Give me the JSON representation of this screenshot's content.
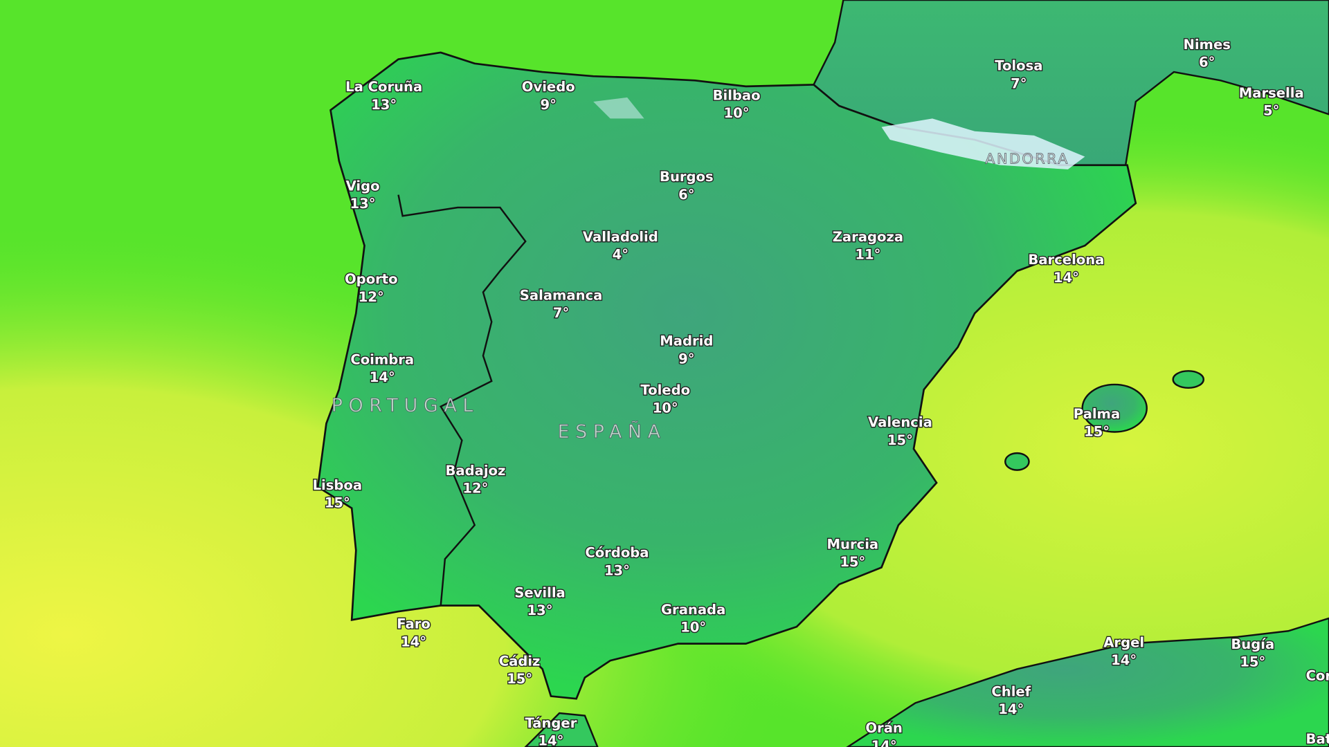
{
  "colors": {
    "sea_cold": "#55e52a",
    "sea_warm": "#e6f542",
    "land_cool": "#3aa77a",
    "land_warm": "#2fd853",
    "snow": "#dff4ff",
    "border": "#111111"
  },
  "countries": {
    "portugal": "PORTUGAL",
    "espana": "ESPAÑA",
    "andorra": "ANDORRA"
  },
  "cities": [
    {
      "name": "La Coruña",
      "temp": "13°"
    },
    {
      "name": "Oviedo",
      "temp": "9°"
    },
    {
      "name": "Bilbao",
      "temp": "10°"
    },
    {
      "name": "Tolosa",
      "temp": "7°"
    },
    {
      "name": "Nimes",
      "temp": "6°"
    },
    {
      "name": "Marsella",
      "temp": "5°"
    },
    {
      "name": "Vigo",
      "temp": "13°"
    },
    {
      "name": "Burgos",
      "temp": "6°"
    },
    {
      "name": "Valladolid",
      "temp": "4°"
    },
    {
      "name": "Zaragoza",
      "temp": "11°"
    },
    {
      "name": "Barcelona",
      "temp": "14°"
    },
    {
      "name": "Oporto",
      "temp": "12°"
    },
    {
      "name": "Salamanca",
      "temp": "7°"
    },
    {
      "name": "Madrid",
      "temp": "9°"
    },
    {
      "name": "Coimbra",
      "temp": "14°"
    },
    {
      "name": "Toledo",
      "temp": "10°"
    },
    {
      "name": "Valencia",
      "temp": "15°"
    },
    {
      "name": "Palma",
      "temp": "15°"
    },
    {
      "name": "Badajoz",
      "temp": "12°"
    },
    {
      "name": "Lisboa",
      "temp": "15°"
    },
    {
      "name": "Córdoba",
      "temp": "13°"
    },
    {
      "name": "Murcia",
      "temp": "15°"
    },
    {
      "name": "Sevilla",
      "temp": "13°"
    },
    {
      "name": "Granada",
      "temp": "10°"
    },
    {
      "name": "Faro",
      "temp": "14°"
    },
    {
      "name": "Cádiz",
      "temp": "15°"
    },
    {
      "name": "Argel",
      "temp": "14°"
    },
    {
      "name": "Bugía",
      "temp": "15°"
    },
    {
      "name": "Chlef",
      "temp": "14°"
    },
    {
      "name": "Orán",
      "temp": "14°"
    },
    {
      "name": "Tánger",
      "temp": "14°"
    },
    {
      "name": "Cor",
      "temp": ""
    },
    {
      "name": "Bat",
      "temp": ""
    }
  ]
}
